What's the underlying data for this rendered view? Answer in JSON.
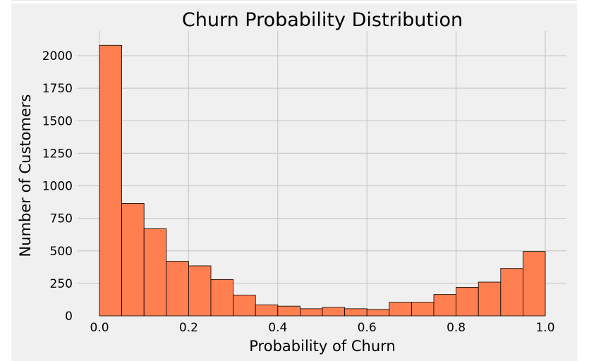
{
  "chart_data": {
    "type": "bar",
    "title": "Churn Probability Distribution",
    "xlabel": "Probability of Churn",
    "ylabel": "Number of Customers",
    "xlim": [
      0.0,
      1.0
    ],
    "ylim": [
      0,
      2100
    ],
    "bin_edges": [
      0.0,
      0.05,
      0.1,
      0.15,
      0.2,
      0.25,
      0.3,
      0.35,
      0.4,
      0.45,
      0.5,
      0.55,
      0.6,
      0.65,
      0.7,
      0.75,
      0.8,
      0.85,
      0.9,
      0.95,
      1.0
    ],
    "values": [
      2080,
      865,
      670,
      420,
      385,
      280,
      160,
      85,
      75,
      55,
      65,
      55,
      50,
      105,
      105,
      165,
      220,
      260,
      365,
      495
    ],
    "x_ticks": [
      0.0,
      0.2,
      0.4,
      0.6,
      0.8,
      1.0
    ],
    "x_tick_labels": [
      "0.0",
      "0.2",
      "0.4",
      "0.6",
      "0.8",
      "1.0"
    ],
    "y_ticks": [
      0,
      250,
      500,
      750,
      1000,
      1250,
      1500,
      1750,
      2000
    ],
    "y_tick_labels": [
      "0",
      "250",
      "500",
      "750",
      "1000",
      "1250",
      "1500",
      "1750",
      "2000"
    ],
    "grid": true,
    "bar_color": "#ff7f50",
    "bar_edge_color": "#000000",
    "grid_color": "#cbcbcb",
    "background_color": "#f0f0f0"
  }
}
